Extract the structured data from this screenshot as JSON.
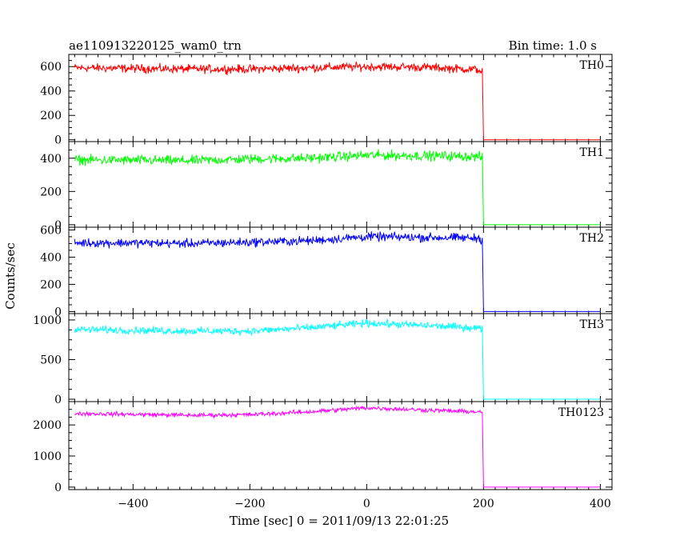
{
  "chart_data": {
    "type": "line",
    "title": "ae110913220125_wam0_trn",
    "subtitle": "Bin time: 1.0 s",
    "xlabel": "Time [sec] 0 = 2011/09/13 22:01:25",
    "ylabel": "Counts/sec",
    "xlim": [
      -510,
      420
    ],
    "x_ticks": [
      -400,
      -200,
      0,
      200,
      400
    ],
    "grid": false,
    "panels": [
      {
        "name": "TH0",
        "color": "#ff0000",
        "ylim": [
          -15,
          700
        ],
        "y_ticks": [
          0,
          200,
          400,
          600
        ],
        "segments": [
          [
            -500,
            590
          ],
          [
            -400,
            585
          ],
          [
            -300,
            580
          ],
          [
            -200,
            580
          ],
          [
            -100,
            590
          ],
          [
            0,
            600
          ],
          [
            100,
            595
          ],
          [
            190,
            575
          ],
          [
            198,
            560
          ]
        ],
        "noise": 30,
        "after": 0
      },
      {
        "name": "TH1",
        "color": "#00ff00",
        "ylim": [
          -15,
          500
        ],
        "y_ticks": [
          0,
          200,
          400
        ],
        "segments": [
          [
            -500,
            390
          ],
          [
            -400,
            388
          ],
          [
            -300,
            385
          ],
          [
            -200,
            395
          ],
          [
            -100,
            400
          ],
          [
            0,
            418
          ],
          [
            100,
            415
          ],
          [
            190,
            410
          ],
          [
            198,
            405
          ]
        ],
        "noise": 25,
        "after": 0
      },
      {
        "name": "TH2",
        "color": "#0000ff",
        "ylim": [
          -15,
          620
        ],
        "y_ticks": [
          0,
          200,
          400,
          600
        ],
        "segments": [
          [
            -500,
            505
          ],
          [
            -400,
            505
          ],
          [
            -300,
            500
          ],
          [
            -200,
            510
          ],
          [
            -100,
            520
          ],
          [
            0,
            550
          ],
          [
            100,
            545
          ],
          [
            190,
            540
          ],
          [
            198,
            530
          ]
        ],
        "noise": 28,
        "after": 0
      },
      {
        "name": "TH3",
        "color": "#00ffff",
        "ylim": [
          -30,
          1080
        ],
        "y_ticks": [
          0,
          500,
          1000
        ],
        "segments": [
          [
            -500,
            880
          ],
          [
            -400,
            870
          ],
          [
            -300,
            860
          ],
          [
            -200,
            860
          ],
          [
            -100,
            900
          ],
          [
            0,
            960
          ],
          [
            100,
            930
          ],
          [
            190,
            900
          ],
          [
            198,
            880
          ]
        ],
        "noise": 40,
        "after": 0
      },
      {
        "name": "TH0123",
        "color": "#ff00ff",
        "ylim": [
          -80,
          2750
        ],
        "y_ticks": [
          0,
          1000,
          2000
        ],
        "segments": [
          [
            -500,
            2370
          ],
          [
            -400,
            2340
          ],
          [
            -300,
            2310
          ],
          [
            -200,
            2330
          ],
          [
            -100,
            2420
          ],
          [
            0,
            2550
          ],
          [
            100,
            2480
          ],
          [
            190,
            2420
          ],
          [
            198,
            2380
          ]
        ],
        "noise": 60,
        "after": 0
      }
    ]
  }
}
